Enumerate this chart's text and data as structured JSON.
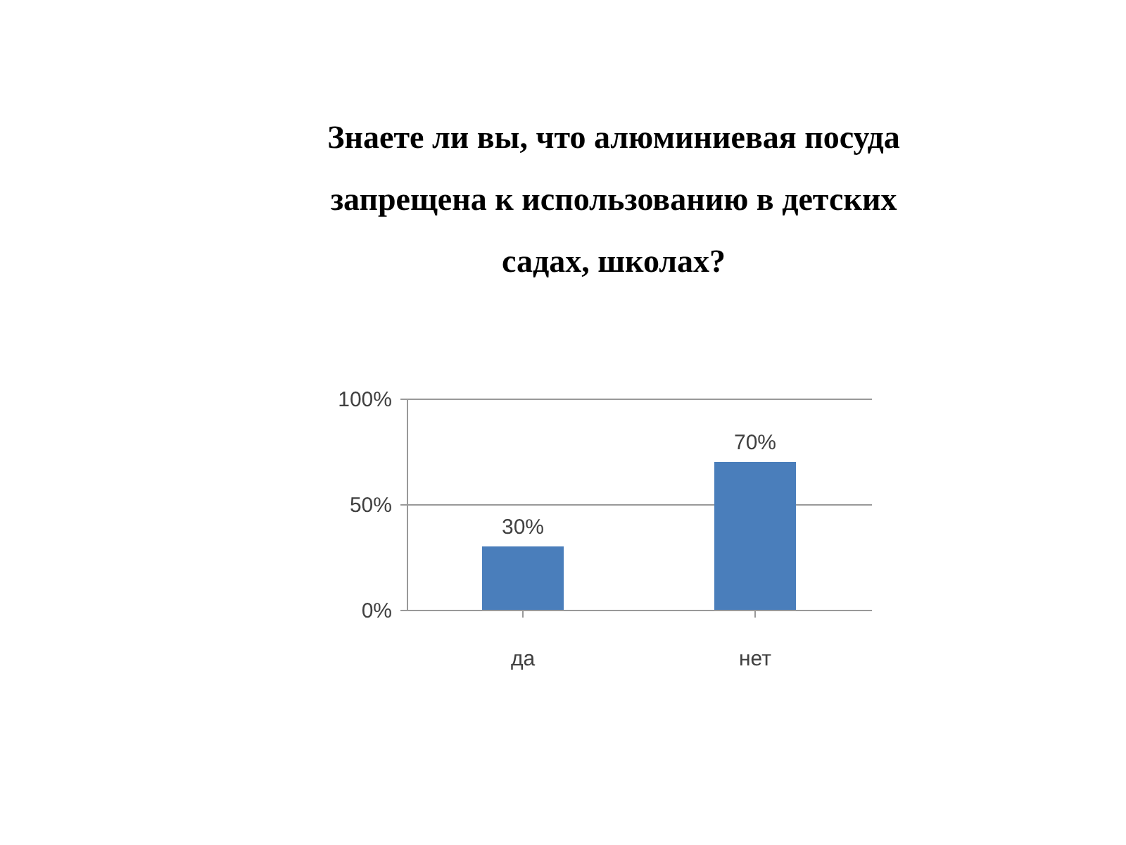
{
  "chart_data": {
    "type": "bar",
    "title": "Знаете ли вы, что алюминиевая посуда запрещена к использованию в детских садах, школах?",
    "categories": [
      "да",
      "нет"
    ],
    "series": [
      {
        "color": "#4a7ebb",
        "values": [
          30,
          70
        ],
        "value_labels": [
          "30%",
          "70%"
        ]
      }
    ],
    "ylim": [
      0,
      100
    ],
    "yticks": [
      {
        "value": 0,
        "label": "0%"
      },
      {
        "value": 50,
        "label": "50%"
      },
      {
        "value": 100,
        "label": "100%"
      }
    ],
    "grid": "y"
  }
}
